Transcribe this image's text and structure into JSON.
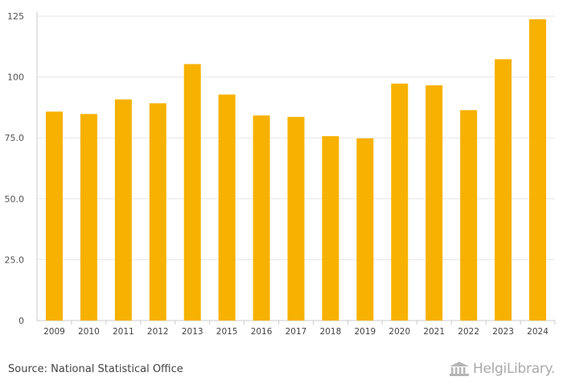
{
  "chart_data": {
    "type": "bar",
    "categories": [
      "2009",
      "2010",
      "2011",
      "2012",
      "2013",
      "2015",
      "2016",
      "2017",
      "2018",
      "2019",
      "2020",
      "2021",
      "2022",
      "2023",
      "2024"
    ],
    "values": [
      85.8,
      84.8,
      90.8,
      89.2,
      105.3,
      92.8,
      84.2,
      83.6,
      75.7,
      74.8,
      97.3,
      96.6,
      86.4,
      107.3,
      123.7
    ],
    "ylim": [
      0,
      125
    ],
    "yticks": [
      0,
      25.0,
      50.0,
      75.0,
      100,
      125
    ],
    "ytick_labels": [
      "0",
      "25.0",
      "50.0",
      "75.0",
      "100",
      "125"
    ],
    "title": "",
    "xlabel": "",
    "ylabel": "",
    "bar_color": "#F7B100",
    "grid": true
  },
  "footer": {
    "source": "Source: National Statistical Office",
    "brand": "HelgiLibrary."
  }
}
